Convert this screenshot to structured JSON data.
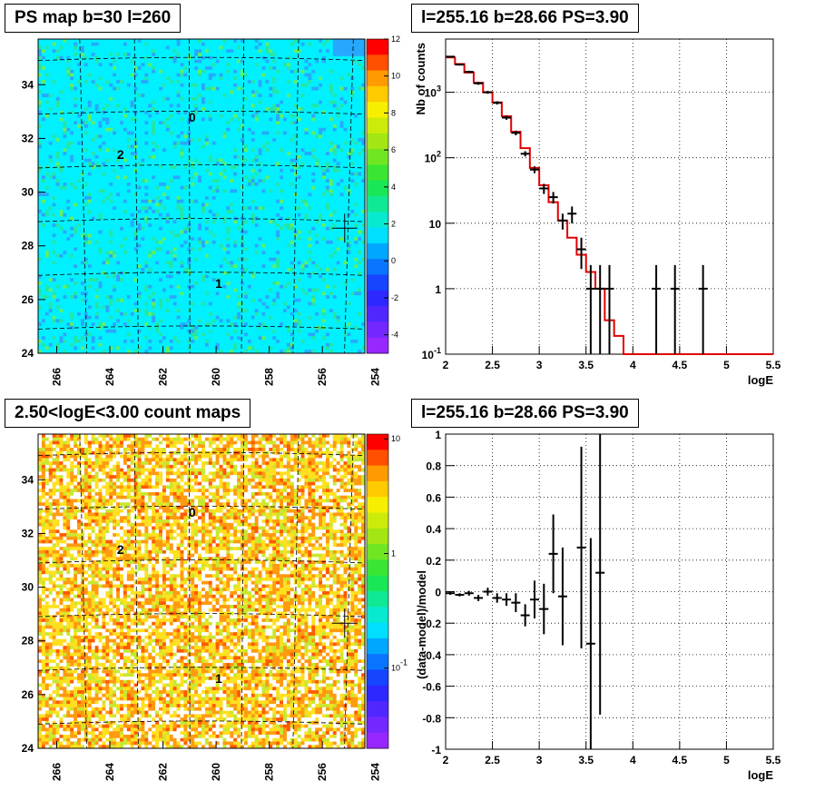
{
  "titles": {
    "tl": "PS map b=30 l=260",
    "tr": "l=255.16 b=28.66 PS=3.90",
    "bl": "2.50<logE<3.00 count maps",
    "br": "l=255.16 b=28.66 PS=3.90"
  },
  "colors": {
    "red_line": "#e00000",
    "grid": "#000000"
  },
  "chart_data": [
    {
      "type": "heatmap",
      "title": "PS map b=30 l=260",
      "xticks": [
        "266",
        "264",
        "262",
        "260",
        "258",
        "256",
        "254"
      ],
      "yticks": [
        "24",
        "26",
        "28",
        "30",
        "32",
        "34"
      ],
      "xlim": [
        254.4,
        266.7
      ],
      "ylim": [
        24,
        35.7
      ],
      "zticks": [
        "12",
        "10",
        "8",
        "6",
        "4",
        "2",
        "0",
        "-2",
        "-4"
      ],
      "zlim": [
        -5,
        12
      ],
      "source_labels": [
        {
          "name": "0",
          "l": 260.9,
          "b": 32.8
        },
        {
          "name": "2",
          "l": 263.6,
          "b": 31.4
        },
        {
          "name": "1",
          "l": 259.9,
          "b": 26.6
        }
      ],
      "cross": {
        "l": 255.16,
        "b": 28.66
      }
    },
    {
      "type": "line",
      "title": "l=255.16 b=28.66 PS=3.90",
      "xlabel": "logE",
      "ylabel": "Nb of counts",
      "log_y": true,
      "xlim": [
        2,
        5.5
      ],
      "ylim": [
        0.1,
        6500
      ],
      "xticks": [
        "2",
        "2.5",
        "3",
        "3.5",
        "4",
        "4.5",
        "5",
        "5.5"
      ],
      "yticks": [
        "10^{-1}",
        "1",
        "10",
        "10^{2}",
        "10^{3}"
      ],
      "model": [
        {
          "x0": 2.0,
          "x1": 2.1,
          "y": 3400
        },
        {
          "x0": 2.1,
          "x1": 2.2,
          "y": 2700
        },
        {
          "x0": 2.2,
          "x1": 2.3,
          "y": 2000
        },
        {
          "x0": 2.3,
          "x1": 2.4,
          "y": 1400
        },
        {
          "x0": 2.4,
          "x1": 2.5,
          "y": 1000
        },
        {
          "x0": 2.5,
          "x1": 2.6,
          "y": 700
        },
        {
          "x0": 2.6,
          "x1": 2.7,
          "y": 430
        },
        {
          "x0": 2.7,
          "x1": 2.8,
          "y": 250
        },
        {
          "x0": 2.8,
          "x1": 2.9,
          "y": 140
        },
        {
          "x0": 2.9,
          "x1": 3.0,
          "y": 70
        },
        {
          "x0": 3.0,
          "x1": 3.1,
          "y": 38
        },
        {
          "x0": 3.1,
          "x1": 3.2,
          "y": 21
        },
        {
          "x0": 3.2,
          "x1": 3.3,
          "y": 11
        },
        {
          "x0": 3.3,
          "x1": 3.4,
          "y": 6
        },
        {
          "x0": 3.4,
          "x1": 3.5,
          "y": 3.3
        },
        {
          "x0": 3.5,
          "x1": 3.6,
          "y": 1.8
        },
        {
          "x0": 3.6,
          "x1": 3.7,
          "y": 1.0
        },
        {
          "x0": 3.7,
          "x1": 3.8,
          "y": 0.33
        },
        {
          "x0": 3.8,
          "x1": 3.9,
          "y": 0.19
        },
        {
          "x0": 3.9,
          "x1": 5.5,
          "y": 0.1
        }
      ],
      "data": [
        {
          "x": 2.05,
          "y": 3500,
          "lo": 3400,
          "hi": 3600
        },
        {
          "x": 2.15,
          "y": 2650,
          "lo": 2560,
          "hi": 2750
        },
        {
          "x": 2.25,
          "y": 2050,
          "lo": 1970,
          "hi": 2130
        },
        {
          "x": 2.35,
          "y": 1370,
          "lo": 1300,
          "hi": 1440
        },
        {
          "x": 2.45,
          "y": 1000,
          "lo": 950,
          "hi": 1050
        },
        {
          "x": 2.55,
          "y": 690,
          "lo": 650,
          "hi": 730
        },
        {
          "x": 2.65,
          "y": 410,
          "lo": 380,
          "hi": 440
        },
        {
          "x": 2.75,
          "y": 240,
          "lo": 220,
          "hi": 260
        },
        {
          "x": 2.85,
          "y": 115,
          "lo": 105,
          "hi": 126
        },
        {
          "x": 2.95,
          "y": 66,
          "lo": 58,
          "hi": 74
        },
        {
          "x": 3.05,
          "y": 34,
          "lo": 28,
          "hi": 40
        },
        {
          "x": 3.15,
          "y": 25,
          "lo": 20,
          "hi": 30
        },
        {
          "x": 3.25,
          "y": 11,
          "lo": 8,
          "hi": 14
        },
        {
          "x": 3.35,
          "y": 14,
          "lo": 10,
          "hi": 18
        },
        {
          "x": 3.45,
          "y": 4,
          "lo": 2,
          "hi": 6
        },
        {
          "x": 3.55,
          "y": 1,
          "lo": 0.1,
          "hi": 2.3
        },
        {
          "x": 3.65,
          "y": 1,
          "lo": 0.1,
          "hi": 2.3
        },
        {
          "x": 3.75,
          "y": 1,
          "lo": 0.1,
          "hi": 2.3
        },
        {
          "x": 4.25,
          "y": 1,
          "lo": 0.1,
          "hi": 2.3
        },
        {
          "x": 4.45,
          "y": 1,
          "lo": 0.1,
          "hi": 2.3
        },
        {
          "x": 4.75,
          "y": 1,
          "lo": 0.1,
          "hi": 2.3
        }
      ]
    },
    {
      "type": "heatmap",
      "title": "2.50<logE<3.00 count maps",
      "xticks": [
        "266",
        "264",
        "262",
        "260",
        "258",
        "256",
        "254"
      ],
      "yticks": [
        "24",
        "26",
        "28",
        "30",
        "32",
        "34"
      ],
      "xlim": [
        254.4,
        266.7
      ],
      "ylim": [
        24,
        35.7
      ],
      "zticks": [
        "10",
        "1",
        "10^{-1}"
      ],
      "log_z": true,
      "source_labels": [
        {
          "name": "0",
          "l": 260.9,
          "b": 32.8
        },
        {
          "name": "2",
          "l": 263.6,
          "b": 31.4
        },
        {
          "name": "1",
          "l": 259.9,
          "b": 26.6
        }
      ],
      "cross": {
        "l": 255.16,
        "b": 28.66
      }
    },
    {
      "type": "scatter",
      "title": "l=255.16 b=28.66 PS=3.90",
      "xlabel": "logE",
      "ylabel": "(data-model)/model",
      "xlim": [
        2,
        5.5
      ],
      "ylim": [
        -1,
        1
      ],
      "xticks": [
        "2",
        "2.5",
        "3",
        "3.5",
        "4",
        "4.5",
        "5",
        "5.5"
      ],
      "yticks": [
        "-1",
        "-0.8",
        "-0.6",
        "-0.4",
        "-0.2",
        "0",
        "0.2",
        "0.4",
        "0.6",
        "0.8",
        "1"
      ],
      "points": [
        {
          "x": 2.05,
          "y": -0.01,
          "e": 0.01
        },
        {
          "x": 2.15,
          "y": -0.02,
          "e": 0.01
        },
        {
          "x": 2.25,
          "y": -0.01,
          "e": 0.015
        },
        {
          "x": 2.35,
          "y": -0.04,
          "e": 0.02
        },
        {
          "x": 2.45,
          "y": 0.0,
          "e": 0.025
        },
        {
          "x": 2.55,
          "y": -0.04,
          "e": 0.03
        },
        {
          "x": 2.65,
          "y": -0.05,
          "e": 0.04
        },
        {
          "x": 2.75,
          "y": -0.07,
          "e": 0.06
        },
        {
          "x": 2.85,
          "y": -0.15,
          "e": 0.07
        },
        {
          "x": 2.95,
          "y": -0.05,
          "e": 0.12
        },
        {
          "x": 3.05,
          "y": -0.11,
          "e": 0.16
        },
        {
          "x": 3.15,
          "y": 0.24,
          "e": 0.25
        },
        {
          "x": 3.25,
          "y": -0.03,
          "e": 0.31
        },
        {
          "x": 3.45,
          "y": 0.28,
          "e": 0.64
        },
        {
          "x": 3.55,
          "y": -0.33,
          "e": 0.67
        },
        {
          "x": 3.65,
          "y": 0.12,
          "e": 0.9
        }
      ]
    }
  ]
}
